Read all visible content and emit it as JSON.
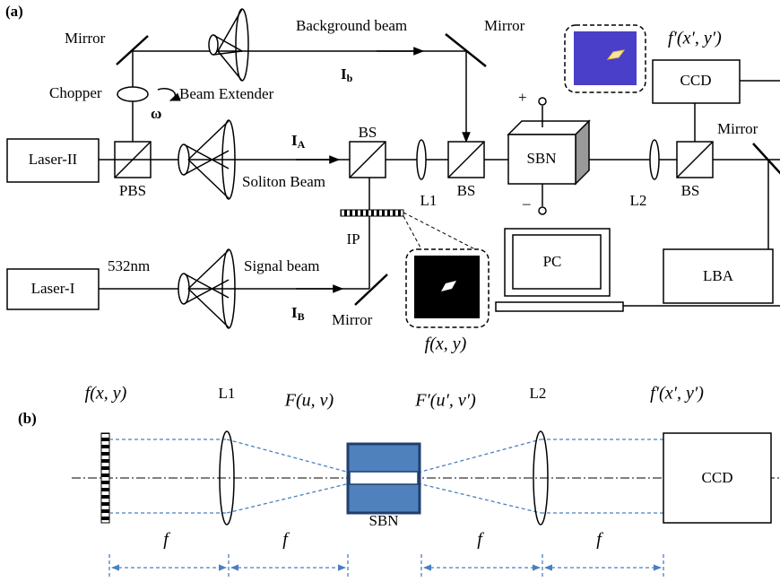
{
  "panel_a": {
    "label": "(a)",
    "mirror_top_left": "Mirror",
    "background_beam": "Background beam",
    "mirror_top_right": "Mirror",
    "I_b": {
      "symbol": "I",
      "subscript": "b"
    },
    "output_field": "f′(x′, y′)",
    "ccd": "CCD",
    "chopper": "Chopper",
    "omega": "ω",
    "beam_extender": "Beam Extender",
    "plus": "+",
    "bs_1": "BS",
    "I_A": {
      "symbol": "I",
      "subscript": "A"
    },
    "sbn": "SBN",
    "laser_2": "Laser-II",
    "pbs": "PBS",
    "soliton_beam": "Soliton Beam",
    "l1": "L1",
    "bs_2": "BS",
    "l2": "L2",
    "bs_3": "BS",
    "mirror_right": "Mirror",
    "minus": "–",
    "ip": "IP",
    "wavelength": "532nm",
    "signal_beam": "Signal beam",
    "laser_1": "Laser-I",
    "pc": "PC",
    "lba": "LBA",
    "I_B": {
      "symbol": "I",
      "subscript": "B"
    },
    "mirror_bottom": "Mirror",
    "input_field": "f(x, y)"
  },
  "panel_b": {
    "label": "(b)",
    "input_field": "f(x, y)",
    "l1": "L1",
    "fourier_field": "F(u, v)",
    "fourier_field_out": "F′(u′, v′)",
    "l2": "L2",
    "output_field": "f′(x′, y′)",
    "ccd": "CCD",
    "sbn": "SBN",
    "focal_lengths": [
      "f",
      "f",
      "f",
      "f"
    ]
  }
}
